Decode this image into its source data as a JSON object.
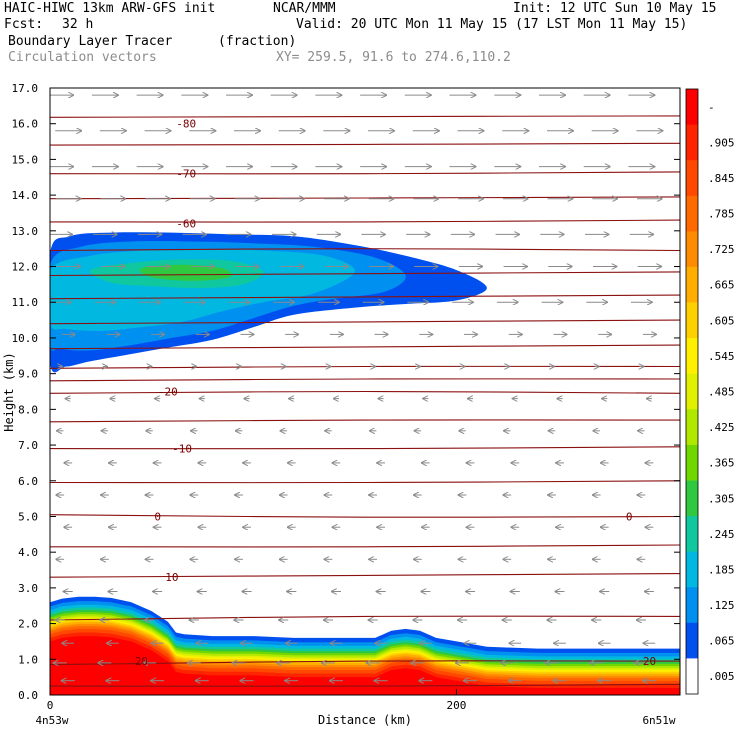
{
  "header": {
    "title_left": "HAIC-HIWC 13km ARW-GFS init",
    "org": "NCAR/MMM",
    "init": "Init: 12 UTC Sun 10 May 15",
    "fcst_label": "Fcst:",
    "fcst_value": "32 h",
    "valid": "Valid: 20 UTC Mon 11 May 15 (17 LST Mon 11 May 15)",
    "field_name": "Boundary Layer Tracer",
    "field_units": "(fraction)",
    "vector_label": "Circulation vectors",
    "xy_label": "XY= 259.5, 91.6 to 274.6,110.2"
  },
  "chart_data": {
    "type": "heatmap",
    "xlabel": "Distance (km)",
    "ylabel": "Height (km)",
    "xlim": [
      0,
      310
    ],
    "ylim": [
      0,
      17
    ],
    "x_ticks": [
      0,
      200
    ],
    "y_ticks": [
      "0.0",
      "1.0",
      "2.0",
      "3.0",
      "4.0",
      "5.0",
      "6.0",
      "7.0",
      "8.0",
      "9.0",
      "10.0",
      "11.0",
      "12.0",
      "13.0",
      "14.0",
      "15.0",
      "16.0",
      "17.0"
    ],
    "x_end_labels": {
      "left": "4n53w",
      "right": "6n51w"
    },
    "colorbar_labels": [
      "-",
      ".905",
      ".845",
      ".785",
      ".725",
      ".665",
      ".605",
      ".545",
      ".485",
      ".425",
      ".365",
      ".305",
      ".245",
      ".185",
      ".125",
      ".065",
      ".005"
    ],
    "colorbar_colors": [
      "#ff0000",
      "#ff2400",
      "#ff4800",
      "#ff6a00",
      "#ff8c00",
      "#ffae00",
      "#ffd000",
      "#fff000",
      "#e0f000",
      "#b0e800",
      "#70d800",
      "#30c840",
      "#10c8a0",
      "#00b8e0",
      "#0090f0",
      "#0050f0",
      "#ffffff"
    ],
    "contour_labels": [
      {
        "x": 67,
        "y": 16.0,
        "text": "-80"
      },
      {
        "x": 67,
        "y": 14.6,
        "text": "-70"
      },
      {
        "x": 67,
        "y": 13.2,
        "text": "-60"
      },
      {
        "x": 58,
        "y": 8.5,
        "text": "-20"
      },
      {
        "x": 65,
        "y": 6.9,
        "text": "-10"
      },
      {
        "x": 53,
        "y": 5.0,
        "text": "0"
      },
      {
        "x": 285,
        "y": 5.0,
        "text": "0"
      },
      {
        "x": 60,
        "y": 3.3,
        "text": "10"
      },
      {
        "x": 45,
        "y": 0.95,
        "text": "20"
      },
      {
        "x": 295,
        "y": 0.95,
        "text": "20"
      }
    ],
    "temperature_contours": [
      {
        "level": -80,
        "y": [
          16.18,
          16.2,
          16.22
        ]
      },
      {
        "level": -75,
        "y": [
          15.4,
          15.42,
          15.45
        ]
      },
      {
        "level": -70,
        "y": [
          14.6,
          14.6,
          14.65
        ]
      },
      {
        "level": -65,
        "y": [
          13.9,
          13.92,
          13.95
        ]
      },
      {
        "level": -60,
        "y": [
          13.25,
          13.25,
          13.3
        ]
      },
      {
        "level": -55,
        "y": [
          12.45,
          12.5,
          12.45
        ]
      },
      {
        "level": -50,
        "y": [
          11.75,
          11.8,
          11.85
        ]
      },
      {
        "level": -45,
        "y": [
          11.1,
          11.15,
          11.2
        ]
      },
      {
        "level": -40,
        "y": [
          10.4,
          10.45,
          10.5
        ]
      },
      {
        "level": -35,
        "y": [
          9.7,
          9.75,
          9.8
        ]
      },
      {
        "level": -30,
        "y": [
          9.15,
          9.2,
          9.2
        ]
      },
      {
        "level": -25,
        "y": [
          8.8,
          8.85,
          8.85
        ]
      },
      {
        "level": -20,
        "y": [
          8.45,
          8.5,
          8.45
        ]
      },
      {
        "level": -15,
        "y": [
          7.65,
          7.7,
          7.7
        ]
      },
      {
        "level": -10,
        "y": [
          6.9,
          6.9,
          6.95
        ]
      },
      {
        "level": -5,
        "y": [
          5.95,
          5.95,
          6.0
        ]
      },
      {
        "level": 0,
        "y": [
          5.05,
          4.98,
          5.0
        ]
      },
      {
        "level": 5,
        "y": [
          4.15,
          4.15,
          4.2
        ]
      },
      {
        "level": 10,
        "y": [
          3.3,
          3.35,
          3.4
        ]
      },
      {
        "level": 15,
        "y": [
          2.1,
          2.2,
          2.2
        ]
      },
      {
        "level": 20,
        "y": [
          0.85,
          0.95,
          0.95
        ]
      },
      {
        "level": 25,
        "y": [
          0.25,
          0.25,
          0.3
        ]
      }
    ],
    "upper_tracer_layers": [
      {
        "value": 0.035,
        "x": [
          0,
          10,
          30,
          60,
          90,
          120,
          150,
          175,
          200,
          215,
          200,
          175,
          150,
          120,
          100,
          80,
          60,
          40,
          20,
          8,
          0
        ],
        "y": [
          12.35,
          12.85,
          12.95,
          12.95,
          12.9,
          12.85,
          12.6,
          12.3,
          11.9,
          11.4,
          11.05,
          10.95,
          10.85,
          10.65,
          10.3,
          9.95,
          9.75,
          9.55,
          9.35,
          9.2,
          9.3
        ]
      },
      {
        "value": 0.08,
        "x": [
          0,
          15,
          40,
          70,
          100,
          130,
          160,
          175,
          165,
          140,
          120,
          100,
          80,
          60,
          40,
          20,
          5,
          0
        ],
        "y": [
          12.05,
          12.55,
          12.7,
          12.7,
          12.65,
          12.55,
          12.25,
          11.75,
          11.3,
          11.1,
          10.9,
          10.55,
          10.2,
          10.0,
          9.8,
          9.65,
          9.7,
          9.85
        ]
      },
      {
        "value": 0.12,
        "x": [
          0,
          20,
          45,
          75,
          105,
          135,
          150,
          130,
          105,
          85,
          65,
          45,
          25,
          8,
          0
        ],
        "y": [
          11.9,
          12.3,
          12.45,
          12.5,
          12.45,
          12.3,
          11.85,
          11.25,
          11.0,
          10.75,
          10.45,
          10.3,
          10.2,
          10.25,
          10.4
        ]
      },
      {
        "value": 0.16,
        "x": [
          5,
          25,
          50,
          80,
          105,
          125,
          110,
          85,
          60,
          40,
          20,
          8
        ],
        "y": [
          11.85,
          12.15,
          12.3,
          12.35,
          12.25,
          11.85,
          11.35,
          11.15,
          11.0,
          10.85,
          10.8,
          11.1
        ]
      },
      {
        "value": 0.2,
        "x": [
          20,
          40,
          65,
          90,
          105,
          95,
          75,
          50,
          30
        ],
        "y": [
          11.9,
          12.1,
          12.2,
          12.15,
          11.85,
          11.5,
          11.4,
          11.45,
          11.55
        ]
      },
      {
        "value": 0.24,
        "x": [
          45,
          65,
          85,
          88,
          70,
          50
        ],
        "y": [
          11.95,
          12.05,
          11.95,
          11.7,
          11.6,
          11.7
        ]
      }
    ],
    "boundary_layer": {
      "x": [
        0,
        6,
        14,
        22,
        30,
        40,
        50,
        58,
        62,
        66,
        80,
        100,
        120,
        140,
        160,
        168,
        175,
        182,
        190,
        200,
        215,
        240,
        270,
        300,
        310
      ],
      "top": [
        2.6,
        2.7,
        2.75,
        2.75,
        2.72,
        2.6,
        2.35,
        2.05,
        1.75,
        1.7,
        1.65,
        1.65,
        1.6,
        1.6,
        1.6,
        1.8,
        1.85,
        1.8,
        1.6,
        1.5,
        1.35,
        1.3,
        1.3,
        1.3,
        1.3
      ],
      "bands": [
        {
          "value": 0.035,
          "offset": 0.0
        },
        {
          "value": 0.095,
          "offset": 0.12
        },
        {
          "value": 0.155,
          "offset": 0.22
        },
        {
          "value": 0.215,
          "offset": 0.3
        },
        {
          "value": 0.275,
          "offset": 0.37
        },
        {
          "value": 0.335,
          "offset": 0.43
        },
        {
          "value": 0.395,
          "offset": 0.49
        },
        {
          "value": 0.455,
          "offset": 0.55
        },
        {
          "value": 0.515,
          "offset": 0.6
        },
        {
          "value": 0.575,
          "offset": 0.65
        },
        {
          "value": 0.635,
          "offset": 0.7
        },
        {
          "value": 0.695,
          "offset": 0.76
        },
        {
          "value": 0.755,
          "offset": 0.82
        },
        {
          "value": 0.815,
          "offset": 0.9
        },
        {
          "value": 0.875,
          "offset": 1.0
        },
        {
          "value": 0.935,
          "offset": 1.1
        },
        {
          "value": 0.965,
          "offset": 1.25
        }
      ]
    },
    "vectors": {
      "x_positions": [
        5,
        27,
        49,
        71,
        93,
        115,
        137,
        159,
        181,
        203,
        225,
        247,
        269,
        291
      ],
      "levels": [
        {
          "y": 16.8,
          "u": 1.0
        },
        {
          "y": 15.8,
          "u": 1.0
        },
        {
          "y": 14.8,
          "u": 1.0
        },
        {
          "y": 13.9,
          "u": 0.95
        },
        {
          "y": 12.9,
          "u": 0.9
        },
        {
          "y": 12.0,
          "u": 0.9
        },
        {
          "y": 11.0,
          "u": 0.8
        },
        {
          "y": 10.1,
          "u": 0.5
        },
        {
          "y": 9.2,
          "u": 0.15
        },
        {
          "y": 8.3,
          "u": -0.2
        },
        {
          "y": 7.4,
          "u": -0.25
        },
        {
          "y": 6.5,
          "u": -0.3
        },
        {
          "y": 5.6,
          "u": -0.3
        },
        {
          "y": 4.7,
          "u": -0.3
        },
        {
          "y": 3.8,
          "u": -0.3
        },
        {
          "y": 2.9,
          "u": -0.35
        },
        {
          "y": 2.1,
          "u": -0.35
        },
        {
          "y": 1.45,
          "u": -0.45
        },
        {
          "y": 0.9,
          "u": -0.5
        },
        {
          "y": 0.4,
          "u": -0.5
        }
      ]
    }
  }
}
